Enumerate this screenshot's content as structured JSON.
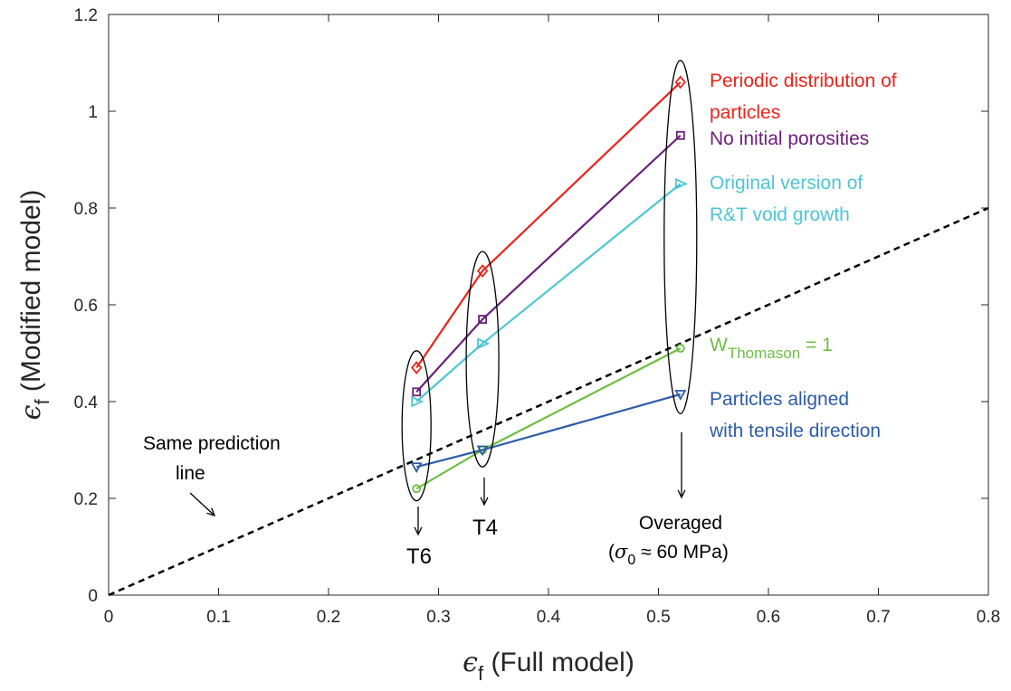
{
  "chart_data": {
    "type": "line",
    "xlabel": {
      "symbol": "ϵ",
      "sub": "f",
      "text": " (Full model)"
    },
    "ylabel": {
      "symbol": "ϵ",
      "sub": "f",
      "text": " (Modified model)"
    },
    "xlim": [
      0,
      0.8
    ],
    "ylim": [
      0,
      1.2
    ],
    "xticks": [
      "0",
      "0.1",
      "0.2",
      "0.3",
      "0.4",
      "0.5",
      "0.6",
      "0.7",
      "0.8"
    ],
    "yticks": [
      "0",
      "0.2",
      "0.4",
      "0.6",
      "0.8",
      "1",
      "1.2"
    ],
    "grid": false,
    "x": [
      0.28,
      0.34,
      0.52
    ],
    "series": [
      {
        "label_lines": [
          "Periodic distribution of",
          "particles"
        ],
        "color": "#e8251c",
        "marker": "diamond",
        "values": [
          0.47,
          0.67,
          1.06
        ]
      },
      {
        "label_lines": [
          "No initial porosities"
        ],
        "color": "#6b1f7a",
        "marker": "square",
        "values": [
          0.42,
          0.57,
          0.95
        ]
      },
      {
        "label_lines": [
          "Original version of",
          "R&T void growth"
        ],
        "color": "#4ec5d3",
        "marker": "triangle-right",
        "values": [
          0.4,
          0.52,
          0.85
        ]
      },
      {
        "label_main": "W",
        "label_sub": "Thomason",
        "label_rest": " = 1",
        "color": "#6ebe44",
        "marker": "circle",
        "values": [
          0.22,
          0.3,
          0.51
        ]
      },
      {
        "label_lines": [
          "Particles aligned",
          "with tensile direction"
        ],
        "color": "#2d5ca8",
        "marker": "triangle-down",
        "values": [
          0.265,
          0.3,
          0.415
        ]
      }
    ],
    "reference_line": {
      "x": [
        0,
        0.8
      ],
      "y": [
        0,
        0.8
      ],
      "style": "dashed",
      "color": "#000000"
    },
    "annotations": {
      "same_line": [
        "Same prediction",
        "line"
      ],
      "t6": "T6",
      "t4": "T4",
      "overaged": "Overaged",
      "sigma": {
        "symbol": "σ",
        "sub": "0",
        "text": " ≈ 60 MPa"
      }
    }
  }
}
